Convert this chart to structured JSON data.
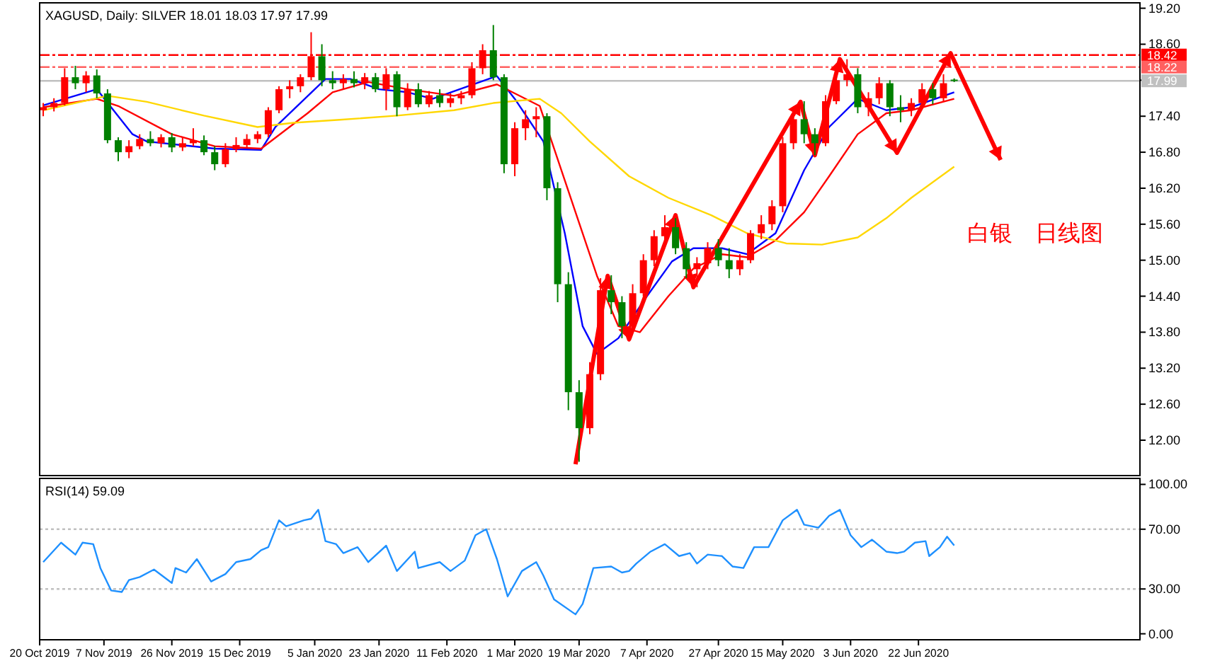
{
  "chart_data": [
    {
      "type": "candlestick",
      "title": "XAGUSD, Daily: SILVER 18.01 18.03 17.97 17.99",
      "x": [
        "2019-10-21",
        "2019-10-24",
        "2019-10-27",
        "2019-10-30",
        "2019-11-02",
        "2019-11-05",
        "2019-11-08",
        "2019-11-11",
        "2019-11-14",
        "2019-11-17",
        "2019-11-20",
        "2019-11-23",
        "2019-11-26",
        "2019-11-29",
        "2019-12-02",
        "2019-12-05",
        "2019-12-08",
        "2019-12-11",
        "2019-12-14",
        "2019-12-17",
        "2019-12-20",
        "2019-12-23",
        "2019-12-26",
        "2019-12-29",
        "2020-01-01",
        "2020-01-04",
        "2020-01-07",
        "2020-01-10",
        "2020-01-13",
        "2020-01-16",
        "2020-01-19",
        "2020-01-22",
        "2020-01-25",
        "2020-01-28",
        "2020-01-31",
        "2020-02-03",
        "2020-02-06",
        "2020-02-09",
        "2020-02-12",
        "2020-02-15",
        "2020-02-18",
        "2020-02-21",
        "2020-02-24",
        "2020-02-27",
        "2020-03-01",
        "2020-03-04",
        "2020-03-07",
        "2020-03-10",
        "2020-03-13",
        "2020-03-16",
        "2020-03-19",
        "2020-03-22",
        "2020-03-25",
        "2020-03-28",
        "2020-03-31",
        "2020-04-03",
        "2020-04-06",
        "2020-04-09",
        "2020-04-12",
        "2020-04-15",
        "2020-04-18",
        "2020-04-21",
        "2020-04-24",
        "2020-04-27",
        "2020-04-30",
        "2020-05-03",
        "2020-05-06",
        "2020-05-09",
        "2020-05-12",
        "2020-05-15",
        "2020-05-18",
        "2020-05-21",
        "2020-05-24",
        "2020-05-27",
        "2020-05-30",
        "2020-06-02",
        "2020-06-05",
        "2020-06-08",
        "2020-06-11",
        "2020-06-14",
        "2020-06-17",
        "2020-06-20",
        "2020-06-23",
        "2020-06-26",
        "2020-06-29",
        "2020-07-02"
      ],
      "ohlc": [
        [
          17.5,
          17.62,
          17.4,
          17.55
        ],
        [
          17.55,
          17.7,
          17.48,
          17.62
        ],
        [
          17.62,
          18.2,
          17.58,
          18.05
        ],
        [
          18.05,
          18.24,
          17.85,
          17.95
        ],
        [
          17.95,
          18.15,
          17.8,
          18.08
        ],
        [
          18.08,
          18.18,
          17.7,
          17.78
        ],
        [
          17.78,
          17.85,
          16.95,
          17.0
        ],
        [
          17.0,
          17.05,
          16.65,
          16.8
        ],
        [
          16.8,
          17.0,
          16.7,
          16.9
        ],
        [
          16.9,
          17.1,
          16.85,
          17.02
        ],
        [
          17.02,
          17.15,
          16.9,
          16.95
        ],
        [
          16.95,
          17.1,
          16.88,
          17.05
        ],
        [
          17.05,
          17.12,
          16.8,
          16.88
        ],
        [
          16.88,
          17.05,
          16.82,
          16.95
        ],
        [
          16.95,
          17.2,
          16.9,
          17.0
        ],
        [
          17.0,
          17.08,
          16.75,
          16.8
        ],
        [
          16.8,
          16.9,
          16.5,
          16.6
        ],
        [
          16.6,
          16.95,
          16.55,
          16.85
        ],
        [
          16.85,
          17.05,
          16.8,
          16.92
        ],
        [
          16.92,
          17.1,
          16.88,
          17.02
        ],
        [
          17.02,
          17.15,
          16.95,
          17.1
        ],
        [
          17.1,
          17.55,
          17.05,
          17.5
        ],
        [
          17.5,
          17.9,
          17.45,
          17.85
        ],
        [
          17.85,
          18.0,
          17.7,
          17.9
        ],
        [
          17.9,
          18.1,
          17.8,
          18.05
        ],
        [
          18.05,
          18.8,
          18.0,
          18.4
        ],
        [
          18.4,
          18.6,
          17.9,
          18.0
        ],
        [
          18.0,
          18.15,
          17.85,
          17.95
        ],
        [
          17.95,
          18.1,
          17.85,
          18.02
        ],
        [
          18.02,
          18.15,
          17.88,
          17.95
        ],
        [
          17.95,
          18.12,
          17.85,
          18.05
        ],
        [
          18.05,
          18.12,
          17.8,
          17.85
        ],
        [
          17.85,
          18.2,
          17.5,
          18.1
        ],
        [
          18.1,
          18.15,
          17.4,
          17.55
        ],
        [
          17.55,
          17.95,
          17.5,
          17.85
        ],
        [
          17.85,
          17.95,
          17.55,
          17.6
        ],
        [
          17.6,
          17.82,
          17.55,
          17.75
        ],
        [
          17.75,
          17.85,
          17.55,
          17.62
        ],
        [
          17.62,
          17.78,
          17.55,
          17.7
        ],
        [
          17.7,
          17.82,
          17.6,
          17.75
        ],
        [
          17.75,
          18.3,
          17.7,
          18.2
        ],
        [
          18.2,
          18.6,
          18.1,
          18.5
        ],
        [
          18.5,
          18.92,
          18.0,
          18.05
        ],
        [
          18.05,
          18.1,
          16.45,
          16.6
        ],
        [
          16.6,
          17.3,
          16.4,
          17.2
        ],
        [
          17.2,
          17.5,
          17.0,
          17.35
        ],
        [
          17.35,
          17.55,
          17.05,
          17.4
        ],
        [
          17.4,
          17.45,
          16.0,
          16.2
        ],
        [
          16.2,
          16.3,
          14.3,
          14.6
        ],
        [
          14.6,
          14.8,
          12.5,
          12.8
        ],
        [
          12.8,
          13.0,
          11.64,
          12.2
        ],
        [
          12.2,
          13.3,
          12.1,
          13.1
        ],
        [
          13.1,
          14.7,
          13.0,
          14.5
        ],
        [
          14.5,
          14.75,
          14.1,
          14.3
        ],
        [
          14.3,
          14.4,
          13.7,
          13.9
        ],
        [
          13.9,
          14.6,
          13.8,
          14.45
        ],
        [
          14.45,
          15.1,
          14.4,
          15.0
        ],
        [
          15.0,
          15.5,
          14.9,
          15.4
        ],
        [
          15.4,
          15.75,
          15.2,
          15.55
        ],
        [
          15.55,
          15.7,
          15.1,
          15.2
        ],
        [
          15.2,
          15.3,
          14.7,
          14.85
        ],
        [
          14.85,
          15.05,
          14.55,
          14.95
        ],
        [
          14.95,
          15.3,
          14.85,
          15.2
        ],
        [
          15.2,
          15.35,
          14.9,
          15.0
        ],
        [
          15.0,
          15.2,
          14.7,
          14.85
        ],
        [
          14.85,
          15.1,
          14.75,
          15.0
        ],
        [
          15.0,
          15.5,
          14.95,
          15.45
        ],
        [
          15.45,
          15.75,
          15.35,
          15.6
        ],
        [
          15.6,
          16.0,
          15.5,
          15.9
        ],
        [
          15.9,
          17.05,
          15.8,
          16.95
        ],
        [
          16.95,
          17.55,
          16.85,
          17.35
        ],
        [
          17.35,
          17.65,
          16.95,
          17.1
        ],
        [
          17.1,
          17.2,
          16.75,
          16.95
        ],
        [
          16.95,
          17.75,
          16.9,
          17.65
        ],
        [
          17.65,
          18.1,
          17.6,
          18.0
        ],
        [
          18.0,
          18.35,
          17.9,
          18.1
        ],
        [
          18.1,
          18.2,
          17.45,
          17.55
        ],
        [
          17.55,
          17.8,
          17.4,
          17.7
        ],
        [
          17.7,
          18.05,
          17.6,
          17.95
        ],
        [
          17.95,
          18.0,
          17.4,
          17.55
        ],
        [
          17.55,
          17.75,
          17.3,
          17.5
        ],
        [
          17.5,
          17.7,
          17.4,
          17.62
        ],
        [
          17.62,
          17.95,
          17.55,
          17.85
        ],
        [
          17.85,
          17.95,
          17.6,
          17.7
        ],
        [
          17.7,
          18.1,
          17.65,
          17.95
        ],
        [
          18.01,
          18.03,
          17.97,
          17.99
        ]
      ],
      "series": [
        {
          "type": "line",
          "color": "#0000ff",
          "x": [
            "2019-10-21",
            "2019-11-05",
            "2019-11-15",
            "2019-11-19",
            "2019-12-08",
            "2019-12-21",
            "2019-12-25",
            "2020-01-08",
            "2020-01-15",
            "2020-01-23",
            "2020-01-31",
            "2020-02-07",
            "2020-02-25",
            "2020-03-01",
            "2020-03-09",
            "2020-03-15",
            "2020-03-20",
            "2020-03-24",
            "2020-03-30",
            "2020-04-07",
            "2020-04-14",
            "2020-04-20",
            "2020-04-28",
            "2020-05-05",
            "2020-05-13",
            "2020-05-21",
            "2020-05-28",
            "2020-06-05",
            "2020-06-13",
            "2020-06-20",
            "2020-07-02"
          ],
          "values": [
            17.58,
            17.85,
            17.1,
            16.98,
            16.86,
            16.84,
            17.22,
            18.02,
            18.02,
            17.85,
            17.8,
            17.69,
            18.07,
            17.69,
            16.98,
            15.45,
            13.9,
            13.44,
            13.7,
            14.4,
            14.98,
            15.2,
            15.2,
            15.1,
            15.45,
            16.5,
            17.22,
            17.69,
            17.5,
            17.55,
            17.8
          ]
        },
        {
          "type": "line",
          "color": "#ff0000",
          "x": [
            "2019-10-21",
            "2019-11-05",
            "2019-11-11",
            "2019-11-26",
            "2019-12-08",
            "2019-12-21",
            "2020-01-03",
            "2020-01-10",
            "2020-01-20",
            "2020-01-31",
            "2020-02-13",
            "2020-02-25",
            "2020-03-08",
            "2020-03-18",
            "2020-03-24",
            "2020-03-30",
            "2020-04-05",
            "2020-04-13",
            "2020-04-20",
            "2020-04-28",
            "2020-05-05",
            "2020-05-13",
            "2020-05-21",
            "2020-05-28",
            "2020-06-05",
            "2020-06-13",
            "2020-06-20",
            "2020-07-02"
          ],
          "values": [
            17.55,
            17.69,
            17.57,
            17.1,
            16.9,
            16.86,
            17.45,
            17.8,
            17.97,
            17.85,
            17.74,
            17.93,
            17.57,
            15.8,
            14.74,
            13.9,
            13.8,
            14.4,
            14.86,
            15.1,
            15.05,
            15.33,
            15.8,
            16.4,
            17.1,
            17.45,
            17.5,
            17.69
          ]
        },
        {
          "type": "line",
          "color": "#ffd700",
          "x": [
            "2019-10-21",
            "2019-11-08",
            "2019-11-19",
            "2019-12-05",
            "2019-12-20",
            "2019-12-30",
            "2020-01-12",
            "2020-01-28",
            "2020-02-13",
            "2020-02-24",
            "2020-03-08",
            "2020-03-14",
            "2020-03-22",
            "2020-04-02",
            "2020-04-13",
            "2020-04-25",
            "2020-05-05",
            "2020-05-16",
            "2020-05-26",
            "2020-06-05",
            "2020-06-13",
            "2020-06-20",
            "2020-07-02"
          ],
          "values": [
            17.5,
            17.74,
            17.64,
            17.41,
            17.22,
            17.29,
            17.34,
            17.41,
            17.5,
            17.62,
            17.69,
            17.45,
            16.98,
            16.4,
            16.04,
            15.75,
            15.45,
            15.28,
            15.26,
            15.38,
            15.7,
            16.04,
            16.56
          ]
        },
        {
          "type": "line",
          "color": "#ff0000",
          "x": [
            "2020-03-18",
            "2020-03-27",
            "2020-04-02",
            "2020-04-15",
            "2020-04-20",
            "2020-05-20",
            "2020-05-24",
            "2020-05-31",
            "2020-06-16",
            "2020-07-01",
            "2020-07-15"
          ],
          "values": [
            11.6,
            14.74,
            13.68,
            15.75,
            14.55,
            17.64,
            16.75,
            18.35,
            16.79,
            18.45,
            16.67
          ]
        }
      ],
      "xlim": [
        "2019-10-20",
        "2020-08-23"
      ],
      "ylim": [
        11.41,
        19.29
      ],
      "yticks": [
        {
          "value": 19.2,
          "label": "19.20"
        },
        {
          "value": 18.6,
          "label": "18.60"
        },
        {
          "value": 18.0,
          "label": null
        },
        {
          "value": 17.4,
          "label": "17.40"
        },
        {
          "value": 16.8,
          "label": "16.80"
        },
        {
          "value": 16.2,
          "label": "16.20"
        },
        {
          "value": 15.6,
          "label": "15.60"
        },
        {
          "value": 15.0,
          "label": "15.00"
        },
        {
          "value": 14.4,
          "label": "14.40"
        },
        {
          "value": 13.8,
          "label": "13.80"
        },
        {
          "value": 13.2,
          "label": "13.20"
        },
        {
          "value": 12.6,
          "label": "12.60"
        },
        {
          "value": 12.0,
          "label": "12.00"
        }
      ],
      "ref_lines": [
        {
          "axis": "y",
          "value": 18.42,
          "label": "18.42",
          "color": "#ff0000",
          "line_style": "dashed"
        },
        {
          "axis": "y",
          "value": 18.22,
          "label": "18.22",
          "color": "#ff6060",
          "line_style": "dashed"
        },
        {
          "axis": "y",
          "value": 17.99,
          "label": "17.99",
          "color": "#c0c0c0",
          "line_style": "solid"
        }
      ],
      "annotations": [
        "白银　日线图"
      ],
      "tick_labels": "y"
    },
    {
      "type": "line",
      "title": "RSI(14) 59.09",
      "x": [
        "2019-10-21",
        "2019-10-26",
        "2019-10-30",
        "2019-11-01",
        "2019-11-04",
        "2019-11-06",
        "2019-11-09",
        "2019-11-12",
        "2019-11-14",
        "2019-11-17",
        "2019-11-21",
        "2019-11-26",
        "2019-11-27",
        "2019-11-30",
        "2019-12-03",
        "2019-12-07",
        "2019-12-11",
        "2019-12-14",
        "2019-12-18",
        "2019-12-21",
        "2019-12-23",
        "2019-12-26",
        "2019-12-28",
        "2020-01-02",
        "2020-01-04",
        "2020-01-06",
        "2020-01-08",
        "2020-01-11",
        "2020-01-13",
        "2020-01-17",
        "2020-01-20",
        "2020-01-25",
        "2020-01-28",
        "2020-02-02",
        "2020-02-03",
        "2020-02-09",
        "2020-02-12",
        "2020-02-16",
        "2020-02-19",
        "2020-02-22",
        "2020-02-25",
        "2020-02-28",
        "2020-03-03",
        "2020-03-07",
        "2020-03-09",
        "2020-03-12",
        "2020-03-18",
        "2020-03-20",
        "2020-03-23",
        "2020-03-28",
        "2020-03-31",
        "2020-04-02",
        "2020-04-04",
        "2020-04-08",
        "2020-04-12",
        "2020-04-16",
        "2020-04-19",
        "2020-04-21",
        "2020-04-24",
        "2020-04-28",
        "2020-05-01",
        "2020-05-04",
        "2020-05-07",
        "2020-05-11",
        "2020-05-15",
        "2020-05-19",
        "2020-05-21",
        "2020-05-25",
        "2020-05-28",
        "2020-05-31",
        "2020-06-03",
        "2020-06-06",
        "2020-06-09",
        "2020-06-13",
        "2020-06-16",
        "2020-06-18",
        "2020-06-21",
        "2020-06-24",
        "2020-06-25",
        "2020-06-28",
        "2020-06-30",
        "2020-07-02"
      ],
      "series": [
        {
          "color": "#1e90ff",
          "values": [
            48,
            61,
            53,
            61,
            60,
            44,
            29,
            28,
            36,
            38,
            43,
            34,
            44,
            41,
            50,
            35,
            40,
            48,
            50,
            56,
            58,
            76,
            72,
            76,
            77,
            83,
            62,
            60,
            54,
            58,
            48,
            59,
            42,
            55,
            44,
            48,
            42,
            49,
            66,
            70,
            50,
            25,
            42,
            48,
            39,
            23,
            13,
            20,
            44,
            45,
            41,
            42,
            47,
            55,
            60,
            52,
            54,
            47,
            53,
            52,
            45,
            44,
            58,
            58,
            76,
            83,
            73,
            71,
            79,
            83,
            66,
            58,
            63,
            55,
            54,
            55,
            61,
            62,
            52,
            58,
            65,
            59.09
          ]
        }
      ],
      "xlim": [
        "2019-10-20",
        "2020-08-23"
      ],
      "ylim": [
        -4,
        104
      ],
      "xticks": [
        {
          "value": "2019-10-20",
          "label": "20 Oct 2019"
        },
        {
          "value": "2019-11-07",
          "label": "7 Nov 2019"
        },
        {
          "value": "2019-11-26",
          "label": "26 Nov 2019"
        },
        {
          "value": "2019-12-15",
          "label": "15 Dec 2019"
        },
        {
          "value": "2020-01-05",
          "label": "5 Jan 2020"
        },
        {
          "value": "2020-01-23",
          "label": "23 Jan 2020"
        },
        {
          "value": "2020-02-11",
          "label": "11 Feb 2020"
        },
        {
          "value": "2020-03-01",
          "label": "1 Mar 2020"
        },
        {
          "value": "2020-03-19",
          "label": "19 Mar 2020"
        },
        {
          "value": "2020-04-07",
          "label": "7 Apr 2020"
        },
        {
          "value": "2020-04-27",
          "label": "27 Apr 2020"
        },
        {
          "value": "2020-05-15",
          "label": "15 May 2020"
        },
        {
          "value": "2020-06-03",
          "label": "3 Jun 2020"
        },
        {
          "value": "2020-06-22",
          "label": "22 Jun 2020"
        }
      ],
      "yticks": [
        {
          "value": 100,
          "label": "100.00"
        },
        {
          "value": 70,
          "label": "70.00"
        },
        {
          "value": 30,
          "label": "30.00"
        },
        {
          "value": 0,
          "label": "0.00"
        }
      ],
      "ref_lines": [
        {
          "axis": "y",
          "value": 70,
          "color": "#c0c0c0",
          "line_style": "dotted"
        },
        {
          "axis": "y",
          "value": 30,
          "color": "#c0c0c0",
          "line_style": "dotted"
        }
      ]
    }
  ]
}
